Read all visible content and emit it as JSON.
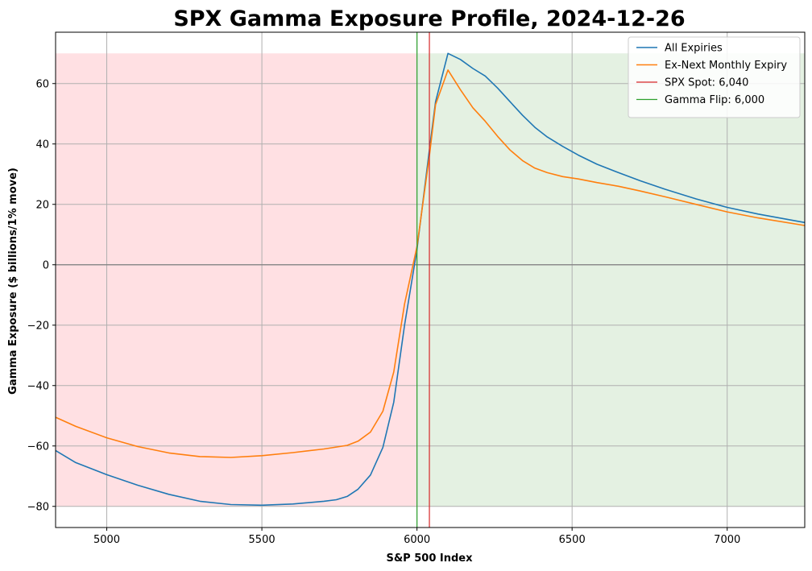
{
  "chart_data": {
    "type": "line",
    "title": "SPX Gamma Exposure Profile, 2024-12-26",
    "xlabel": "S&P 500 Index",
    "ylabel": "Gamma Exposure ($ billions/1% move)",
    "xlim": [
      4835,
      7250
    ],
    "ylim": [
      -87,
      77
    ],
    "x_ticks": [
      5000,
      5500,
      6000,
      6500,
      7000
    ],
    "y_ticks": [
      -80,
      -60,
      -40,
      -20,
      0,
      20,
      40,
      60
    ],
    "grid": true,
    "legend_position": "top-right",
    "shaded_regions": [
      {
        "x_from": 4835,
        "x_to": 6000,
        "y_from": -80,
        "y_to": 70,
        "color": "#ffe0e3"
      },
      {
        "x_from": 6000,
        "x_to": 7250,
        "y_from": -80,
        "y_to": 70,
        "color": "#e4f1e2"
      }
    ],
    "series": [
      {
        "name": "All Expiries",
        "color": "#1f77b4",
        "x": [
          4835,
          4900,
          5000,
          5100,
          5200,
          5300,
          5400,
          5500,
          5600,
          5700,
          5740,
          5775,
          5810,
          5850,
          5890,
          5925,
          5960,
          6000,
          6040,
          6060,
          6100,
          6140,
          6180,
          6220,
          6260,
          6300,
          6340,
          6380,
          6420,
          6470,
          6520,
          6580,
          6650,
          6720,
          6800,
          6900,
          7000,
          7100,
          7250
        ],
        "values": [
          -61.5,
          -65.5,
          -69.5,
          -73.0,
          -76.0,
          -78.3,
          -79.4,
          -79.6,
          -79.2,
          -78.3,
          -77.8,
          -76.7,
          -74.3,
          -69.6,
          -60.5,
          -45.5,
          -20.0,
          5.0,
          38.0,
          54.0,
          70.0,
          68.0,
          65.0,
          62.5,
          58.5,
          54.0,
          49.5,
          45.5,
          42.3,
          39.2,
          36.3,
          33.3,
          30.5,
          27.8,
          25.0,
          21.8,
          19.0,
          16.8,
          14.0
        ]
      },
      {
        "name": "Ex-Next Monthly Expiry",
        "color": "#ff7f0e",
        "x": [
          4835,
          4900,
          5000,
          5100,
          5200,
          5300,
          5400,
          5500,
          5600,
          5700,
          5775,
          5810,
          5850,
          5890,
          5925,
          5960,
          6000,
          6040,
          6060,
          6100,
          6140,
          6180,
          6220,
          6260,
          6300,
          6340,
          6380,
          6420,
          6470,
          6520,
          6580,
          6650,
          6720,
          6800,
          6900,
          7000,
          7100,
          7250
        ],
        "values": [
          -50.5,
          -53.5,
          -57.3,
          -60.2,
          -62.3,
          -63.5,
          -63.8,
          -63.2,
          -62.2,
          -61.0,
          -59.8,
          -58.4,
          -55.4,
          -48.5,
          -35.5,
          -13.0,
          6.0,
          36.0,
          53.0,
          64.5,
          58.0,
          52.0,
          47.5,
          42.5,
          38.0,
          34.5,
          32.0,
          30.5,
          29.2,
          28.4,
          27.2,
          26.0,
          24.4,
          22.5,
          20.0,
          17.5,
          15.5,
          13.0
        ]
      }
    ],
    "vertical_lines": [
      {
        "name": "SPX Spot: 6,040",
        "x": 6040,
        "color": "#d62728"
      },
      {
        "name": "Gamma Flip: 6,000",
        "x": 6000,
        "color": "#2ca02c"
      }
    ]
  }
}
